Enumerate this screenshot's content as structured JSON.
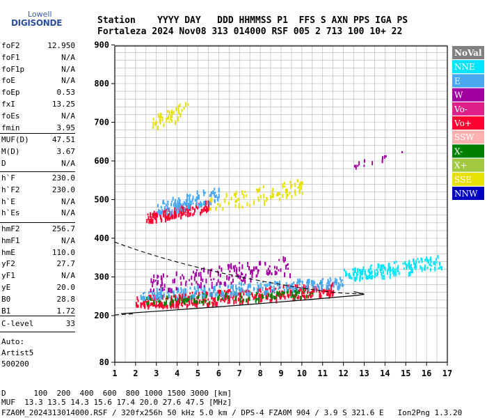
{
  "logo": {
    "top": "Lowell",
    "main": "DIGISONDE"
  },
  "header": {
    "row1": "Station    YYYY DAY   DDD HHMMSS P1  FFS S AXN PPS IGA PS",
    "row2": "Fortaleza 2024 Nov08 313 014000 RSF 005 2 713 100 10+ 22"
  },
  "params": {
    "group1": [
      {
        "name": "foF2",
        "value": "12.950"
      },
      {
        "name": "foF1",
        "value": "N/A"
      },
      {
        "name": "foF1p",
        "value": "N/A"
      },
      {
        "name": "foE",
        "value": "N/A"
      },
      {
        "name": "foEp",
        "value": "0.53"
      },
      {
        "name": "fxI",
        "value": "13.25"
      },
      {
        "name": "foEs",
        "value": "N/A"
      },
      {
        "name": "fmin",
        "value": "3.95"
      }
    ],
    "group2": [
      {
        "name": "MUF(D)",
        "value": "47.51"
      },
      {
        "name": "M(D)",
        "value": "3.67"
      },
      {
        "name": "D",
        "value": "N/A"
      }
    ],
    "group3": [
      {
        "name": "h`F",
        "value": "230.0"
      },
      {
        "name": "h`F2",
        "value": "230.0"
      },
      {
        "name": "h`E",
        "value": "N/A"
      },
      {
        "name": "h`Es",
        "value": "N/A"
      }
    ],
    "group4": [
      {
        "name": "hmF2",
        "value": "256.7"
      },
      {
        "name": "hmF1",
        "value": "N/A"
      },
      {
        "name": "hmE",
        "value": "110.0"
      },
      {
        "name": "yF2",
        "value": "27.7"
      },
      {
        "name": "yF1",
        "value": "N/A"
      },
      {
        "name": "yE",
        "value": "20.0"
      },
      {
        "name": "B0",
        "value": "28.8"
      },
      {
        "name": "B1",
        "value": "1.72"
      }
    ],
    "group5": [
      {
        "name": "C-level",
        "value": "33"
      }
    ]
  },
  "auto": {
    "line1": "Auto:",
    "line2": "Artist5",
    "line3": "500200"
  },
  "footer": {
    "d_line": "D      100  200  400  600  800 1000 1500 3000 [km]",
    "muf_line": "MUF  13.3 13.5 14.3 15.6 17.4 20.0 27.6 47.5 [MHz]",
    "file_line": "FZA0M_2024313014000.RSF / 320fx256h 50 kHz 5.0 km / DPS-4 FZA0M 904 / 3.9 S 321.6 E   Ion2Png 1.3.20"
  },
  "colors": {
    "NoVal": "#808080",
    "NNE": "#00e5ff",
    "E": "#4aa8f0",
    "W": "#a000a0",
    "Vo-": "#e0208a",
    "Vo+": "#ff0030",
    "SSW": "#ffb0b0",
    "X-": "#008000",
    "X+": "#a0c840",
    "SSE": "#e8e000",
    "NNW": "#0000c0",
    "grid": "#b0b0b0",
    "profile": "#000000"
  },
  "chart_data": {
    "type": "scatter",
    "xlim": [
      1,
      17
    ],
    "ylim": [
      80,
      900
    ],
    "xticks": [
      1,
      2,
      3,
      4,
      5,
      6,
      7,
      8,
      9,
      10,
      11,
      12,
      13,
      14,
      15,
      16,
      17
    ],
    "yticks": [
      80,
      200,
      300,
      400,
      500,
      600,
      700,
      800,
      900
    ],
    "grid": true,
    "legend": [
      "NoVal",
      "NNE",
      "E",
      "W",
      "Vo-",
      "Vo+",
      "SSW",
      "X-",
      "X+",
      "SSE",
      "NNW"
    ],
    "legend_position": "right",
    "echo_clusters": [
      {
        "name": "F trace lower (O)",
        "color": "Vo+",
        "x": [
          2,
          11.5
        ],
        "y": [
          228,
          290
        ],
        "count": 420
      },
      {
        "name": "F trace green",
        "color": "X-",
        "x": [
          2.5,
          10.5
        ],
        "y": [
          235,
          275
        ],
        "count": 120
      },
      {
        "name": "F trace E",
        "color": "E",
        "x": [
          2.2,
          12.0
        ],
        "y": [
          250,
          305
        ],
        "count": 260
      },
      {
        "name": "F trace W",
        "color": "W",
        "x": [
          2.5,
          9.5
        ],
        "y": [
          270,
          360
        ],
        "count": 160
      },
      {
        "name": "F trace NNE tail",
        "color": "NNE",
        "x": [
          12.0,
          16.8
        ],
        "y": [
          300,
          360
        ],
        "count": 180
      },
      {
        "name": "2F trace",
        "color": "Vo+",
        "x": [
          2.5,
          5.5
        ],
        "y": [
          450,
          500
        ],
        "count": 150
      },
      {
        "name": "2F trace E",
        "color": "E",
        "x": [
          3.0,
          6.0
        ],
        "y": [
          470,
          540
        ],
        "count": 120
      },
      {
        "name": "2F trace SSE",
        "color": "SSE",
        "x": [
          5.5,
          10.0
        ],
        "y": [
          480,
          560
        ],
        "count": 90
      },
      {
        "name": "3F trace",
        "color": "SSE",
        "x": [
          2.8,
          4.5
        ],
        "y": [
          690,
          760
        ],
        "count": 40
      },
      {
        "name": "High echoes",
        "color": "W",
        "x": [
          12.5,
          15.0
        ],
        "y": [
          590,
          630
        ],
        "count": 12
      }
    ],
    "profile_solid": {
      "x": [
        1.3,
        13.0
      ],
      "y": [
        205,
        255
      ]
    },
    "profile_dashed": {
      "x": [
        1.0,
        13.0
      ],
      "y": [
        390,
        258
      ]
    }
  }
}
